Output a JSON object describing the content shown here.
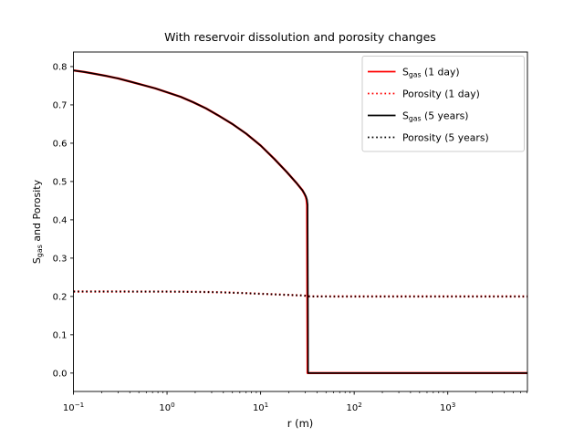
{
  "figure": {
    "background": "#ffffff",
    "axis_color": "#000000",
    "legend_border_color": "#cccccc"
  },
  "chart_data": {
    "type": "line",
    "title": "With reservoir dissolution and porosity changes",
    "xlabel": "r (m)",
    "ylabel": "S_gas and Porosity",
    "ylabel_parts": [
      [
        "S",
        ""
      ],
      [
        "gas",
        "sub"
      ],
      [
        " and Porosity",
        ""
      ]
    ],
    "x_scale": "log",
    "xlim": [
      0.1,
      7100
    ],
    "ylim": [
      -0.048,
      0.838
    ],
    "grid": false,
    "y_ticks": [
      "0.0",
      "0.1",
      "0.2",
      "0.3",
      "0.4",
      "0.5",
      "0.6",
      "0.7",
      "0.8"
    ],
    "x_tick_exponents": [
      -1,
      0,
      1,
      2,
      3
    ],
    "legend_position": "upper right",
    "series": [
      {
        "id": "sgas-1day",
        "name": "S_gas (1 day)",
        "label_parts": [
          [
            "S",
            ""
          ],
          [
            "gas",
            "sub"
          ],
          [
            " (1 day)",
            ""
          ]
        ],
        "color": "#ff0000",
        "style": "solid",
        "linewidth": 1.5,
        "x": [
          0.1,
          0.13,
          0.17,
          0.22,
          0.3,
          0.4,
          0.55,
          0.75,
          1.0,
          1.4,
          1.9,
          2.6,
          3.5,
          5.0,
          7.0,
          10.0,
          14.0,
          19.0,
          24.0,
          28.0,
          29.5,
          30.4,
          31.0,
          31.4,
          31.6,
          31.8,
          33.0,
          100.0,
          1000.0,
          7100.0
        ],
        "y": [
          0.79,
          0.786,
          0.781,
          0.776,
          0.769,
          0.761,
          0.752,
          0.743,
          0.733,
          0.721,
          0.707,
          0.691,
          0.673,
          0.65,
          0.625,
          0.594,
          0.559,
          0.525,
          0.497,
          0.477,
          0.467,
          0.46,
          0.452,
          0.438,
          0.22,
          0.0,
          0.0,
          0.0,
          0.0,
          0.0
        ]
      },
      {
        "id": "porosity-1day",
        "name": "Porosity (1 day)",
        "label_parts": [
          [
            "Porosity (1 day)",
            ""
          ]
        ],
        "color": "#ff0000",
        "style": "dotted",
        "linewidth": 1.5,
        "x": [
          0.1,
          0.3,
          0.7,
          1.0,
          1.5,
          2.0,
          3.0,
          4.0,
          6.0,
          9.0,
          13.0,
          18.0,
          24.0,
          29.0,
          31.0,
          33.0,
          40.0,
          60.0,
          100.0,
          300.0,
          1000.0,
          3000.0,
          7100.0
        ],
        "y": [
          0.2128,
          0.2128,
          0.2127,
          0.2126,
          0.2123,
          0.212,
          0.2113,
          0.2106,
          0.2092,
          0.2074,
          0.2058,
          0.2044,
          0.2032,
          0.2025,
          0.2013,
          0.2003,
          0.2001,
          0.2,
          0.2,
          0.2,
          0.2,
          0.2,
          0.2
        ]
      },
      {
        "id": "sgas-5years",
        "name": "S_gas (5 years)",
        "label_parts": [
          [
            "S",
            ""
          ],
          [
            "gas",
            "sub"
          ],
          [
            " (5 years)",
            ""
          ]
        ],
        "color": "#000000",
        "style": "solid",
        "linewidth": 1.5,
        "x": [
          0.1,
          0.13,
          0.17,
          0.22,
          0.3,
          0.4,
          0.55,
          0.75,
          1.0,
          1.4,
          1.9,
          2.6,
          3.5,
          5.0,
          7.0,
          10.0,
          14.0,
          19.0,
          24.0,
          28.0,
          29.5,
          30.5,
          31.3,
          31.8,
          32.0,
          32.2,
          33.0,
          100.0,
          1000.0,
          7100.0
        ],
        "y": [
          0.79,
          0.786,
          0.781,
          0.776,
          0.769,
          0.761,
          0.752,
          0.743,
          0.733,
          0.721,
          0.707,
          0.691,
          0.673,
          0.65,
          0.625,
          0.594,
          0.559,
          0.525,
          0.497,
          0.477,
          0.468,
          0.461,
          0.453,
          0.44,
          0.25,
          0.0,
          0.0,
          0.0,
          0.0,
          0.0
        ]
      },
      {
        "id": "porosity-5years",
        "name": "Porosity (5 years)",
        "label_parts": [
          [
            "Porosity (5 years)",
            ""
          ]
        ],
        "color": "#000000",
        "style": "dotted",
        "linewidth": 1.5,
        "x": [
          0.1,
          0.3,
          0.7,
          1.0,
          1.5,
          2.0,
          3.0,
          4.0,
          6.0,
          9.0,
          13.0,
          18.0,
          24.0,
          29.0,
          31.0,
          33.0,
          40.0,
          60.0,
          100.0,
          300.0,
          1000.0,
          3000.0,
          7100.0
        ],
        "y": [
          0.2128,
          0.2128,
          0.2127,
          0.2126,
          0.2123,
          0.212,
          0.2113,
          0.2106,
          0.2092,
          0.2074,
          0.2058,
          0.2044,
          0.2032,
          0.2025,
          0.2013,
          0.2003,
          0.2001,
          0.2,
          0.2,
          0.2,
          0.2,
          0.2,
          0.2
        ]
      }
    ]
  }
}
